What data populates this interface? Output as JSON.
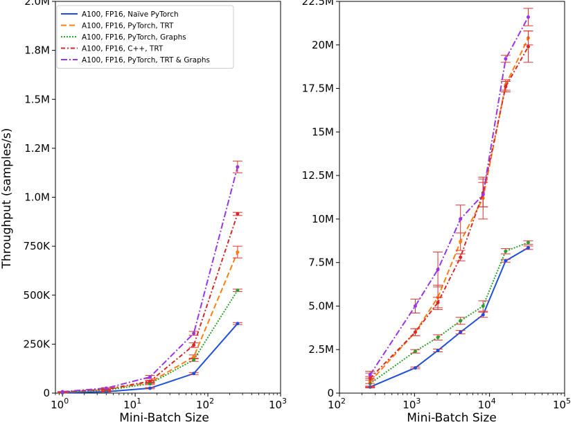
{
  "chart_data": [
    {
      "type": "line",
      "xscale": "log",
      "xlim": [
        0.8,
        1000
      ],
      "ylim": [
        0,
        2000000
      ],
      "xlabel": "Mini-Batch Size",
      "ylabel": "Throughput (samples/s)",
      "xticks": [
        {
          "value": 1,
          "base": "10",
          "exp": "0"
        },
        {
          "value": 10,
          "base": "10",
          "exp": "1"
        },
        {
          "value": 100,
          "base": "10",
          "exp": "2"
        },
        {
          "value": 1000,
          "base": "10",
          "exp": "3"
        }
      ],
      "yticks": [
        {
          "value": 0,
          "label": "0"
        },
        {
          "value": 250000,
          "label": "250K"
        },
        {
          "value": 500000,
          "label": "500K"
        },
        {
          "value": 750000,
          "label": "750K"
        },
        {
          "value": 1000000,
          "label": "1.0M"
        },
        {
          "value": 1250000,
          "label": "1.2M"
        },
        {
          "value": 1500000,
          "label": "1.5M"
        },
        {
          "value": 1750000,
          "label": "1.8M"
        },
        {
          "value": 2000000,
          "label": "2.0M"
        }
      ],
      "x": [
        1,
        4,
        16,
        64,
        256
      ],
      "series": [
        {
          "name": "A100, FP16, Naïve PyTorch",
          "color": "#1f4fdc",
          "dash": "",
          "values": [
            2000,
            7000,
            25000,
            100000,
            355000
          ],
          "err": [
            1000,
            2000,
            3000,
            5000,
            5000
          ]
        },
        {
          "name": "A100, FP16, PyTorch, TRT",
          "color": "#ff7f0e",
          "dash": "8,4",
          "values": [
            5000,
            18000,
            55000,
            185000,
            720000
          ],
          "err": [
            1000,
            3000,
            6000,
            10000,
            30000
          ]
        },
        {
          "name": "A100, FP16, PyTorch, Graphs",
          "color": "#2ca02c",
          "dash": "2,2",
          "values": [
            4000,
            15000,
            48000,
            170000,
            525000
          ],
          "err": [
            1000,
            2000,
            5000,
            8000,
            6000
          ]
        },
        {
          "name": "A100, FP16, C++, TRT",
          "color": "#d62728",
          "dash": "6,3,2,3",
          "values": [
            6000,
            20000,
            60000,
            245000,
            915000
          ],
          "err": [
            1000,
            2000,
            5000,
            12000,
            8000
          ]
        },
        {
          "name": "A100, FP16, PyTorch, TRT & Graphs",
          "color": "#9834ea",
          "dash": "9,3,2,3",
          "values": [
            7000,
            25000,
            82000,
            305000,
            1155000
          ],
          "err": [
            1000,
            3000,
            8000,
            10000,
            30000
          ]
        }
      ],
      "error_color": "#e03030"
    },
    {
      "type": "line",
      "xscale": "log",
      "xlim": [
        100,
        100000
      ],
      "ylim": [
        0,
        22500000
      ],
      "xlabel": "Mini-Batch Size",
      "ylabel": "",
      "xticks": [
        {
          "value": 100,
          "base": "10",
          "exp": "2"
        },
        {
          "value": 1000,
          "base": "10",
          "exp": "3"
        },
        {
          "value": 10000,
          "base": "10",
          "exp": "4"
        },
        {
          "value": 100000,
          "base": "10",
          "exp": "5"
        }
      ],
      "yticks": [
        {
          "value": 0,
          "label": "0"
        },
        {
          "value": 2500000,
          "label": "2.5M"
        },
        {
          "value": 5000000,
          "label": "5.0M"
        },
        {
          "value": 7500000,
          "label": "7.5M"
        },
        {
          "value": 10000000,
          "label": "10M"
        },
        {
          "value": 12500000,
          "label": "12.5M"
        },
        {
          "value": 15000000,
          "label": "15M"
        },
        {
          "value": 17500000,
          "label": "17.5M"
        },
        {
          "value": 20000000,
          "label": "20M"
        },
        {
          "value": 22500000,
          "label": "22.5M"
        }
      ],
      "x": [
        256,
        1024,
        2048,
        4096,
        8192,
        16384,
        32768
      ],
      "series": [
        {
          "name": "A100, FP16, Naïve PyTorch",
          "color": "#1f4fdc",
          "dash": "",
          "values": [
            350000,
            1450000,
            2450000,
            3500000,
            4500000,
            7600000,
            8350000
          ],
          "err": [
            50000,
            50000,
            80000,
            100000,
            150000,
            80000,
            100000
          ]
        },
        {
          "name": "A100, FP16, PyTorch, TRT",
          "color": "#ff7f0e",
          "dash": "8,4",
          "values": [
            650000,
            3500000,
            5500000,
            8700000,
            11200000,
            17700000,
            20400000
          ],
          "err": [
            300000,
            200000,
            700000,
            500000,
            1200000,
            300000,
            400000
          ]
        },
        {
          "name": "A100, FP16, PyTorch, Graphs",
          "color": "#2ca02c",
          "dash": "2,2",
          "values": [
            550000,
            2400000,
            3200000,
            4150000,
            5000000,
            8150000,
            8650000
          ],
          "err": [
            200000,
            100000,
            150000,
            200000,
            300000,
            150000,
            100000
          ]
        },
        {
          "name": "A100, FP16, C++, TRT",
          "color": "#d62728",
          "dash": "6,3,2,3",
          "values": [
            850000,
            3500000,
            5200000,
            7800000,
            11500000,
            17600000,
            19900000
          ],
          "err": [
            300000,
            200000,
            300000,
            200000,
            800000,
            300000,
            900000
          ]
        },
        {
          "name": "A100, FP16, PyTorch, TRT & Graphs",
          "color": "#9834ea",
          "dash": "9,3,2,3",
          "values": [
            1050000,
            5000000,
            7100000,
            10000000,
            11400000,
            19200000,
            21600000
          ],
          "err": [
            200000,
            400000,
            1000000,
            800000,
            700000,
            200000,
            500000
          ]
        }
      ],
      "error_color": "#e03030"
    }
  ]
}
